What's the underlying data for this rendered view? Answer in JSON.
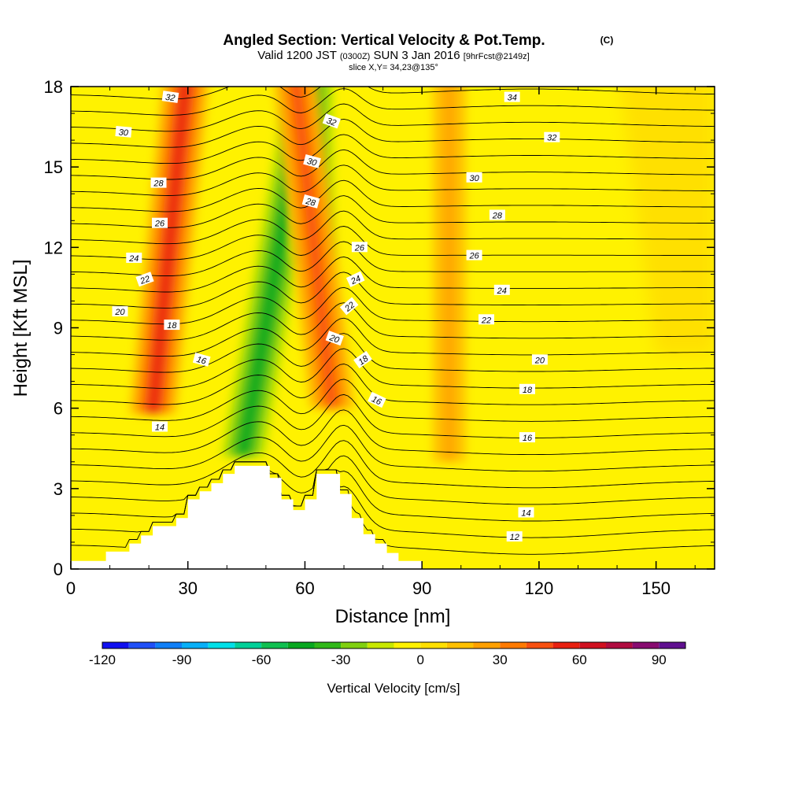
{
  "header": {
    "title": "Angled Section: Vertical Velocity & Pot.Temp.",
    "title_tag": "(C)",
    "valid_prefix": "Valid 1200 JST",
    "valid_zulu": "(0300Z)",
    "valid_date": "SUN 3 Jan 2016",
    "valid_fcst": "[9hrFcst@2149z]",
    "slice": "slice X,Y= 34,23@135°"
  },
  "chart_data": {
    "type": "heatmap",
    "subtype": "vertical cross-section with contour overlay",
    "xlabel": "Distance [nm]",
    "ylabel": "Height [Kft MSL]",
    "xlim": [
      0,
      165
    ],
    "ylim": [
      0,
      18
    ],
    "x_ticks": [
      0,
      30,
      60,
      90,
      120,
      150
    ],
    "y_ticks": [
      0,
      3,
      6,
      9,
      12,
      15,
      18
    ],
    "x_tick_labels": [
      "0",
      "30",
      "60",
      "90",
      "120",
      "150"
    ],
    "y_tick_labels": [
      "0",
      "3",
      "6",
      "9",
      "12",
      "15",
      "18"
    ],
    "fill_field": "Vertical Velocity",
    "fill_units": "cm/s",
    "contour_field": "Potential Temperature (C)",
    "contour_interval": 1,
    "contour_label_values": [
      12,
      14,
      16,
      18,
      20,
      22,
      24,
      26,
      28,
      30,
      32,
      34
    ],
    "contour_labels": [
      {
        "text": "32",
        "x": 25.5,
        "y": 17.6,
        "angle": 8
      },
      {
        "text": "30",
        "x": 13.5,
        "y": 16.3,
        "angle": 5
      },
      {
        "text": "28",
        "x": 22.5,
        "y": 14.4,
        "angle": 0
      },
      {
        "text": "26",
        "x": 22.8,
        "y": 12.9,
        "angle": 0
      },
      {
        "text": "24",
        "x": 16.2,
        "y": 11.6,
        "angle": 0
      },
      {
        "text": "22",
        "x": 19.0,
        "y": 10.8,
        "angle": -20
      },
      {
        "text": "20",
        "x": 12.6,
        "y": 9.6,
        "angle": 0
      },
      {
        "text": "18",
        "x": 25.9,
        "y": 9.1,
        "angle": 0
      },
      {
        "text": "16",
        "x": 33.5,
        "y": 7.8,
        "angle": 15
      },
      {
        "text": "14",
        "x": 22.8,
        "y": 5.3,
        "angle": 0
      },
      {
        "text": "32",
        "x": 66.8,
        "y": 16.7,
        "angle": 20
      },
      {
        "text": "30",
        "x": 61.8,
        "y": 15.2,
        "angle": 15
      },
      {
        "text": "28",
        "x": 61.5,
        "y": 13.7,
        "angle": 15
      },
      {
        "text": "26",
        "x": 74.0,
        "y": 12.0,
        "angle": 0
      },
      {
        "text": "24",
        "x": 73.0,
        "y": 10.8,
        "angle": -25
      },
      {
        "text": "22",
        "x": 71.4,
        "y": 9.8,
        "angle": -40
      },
      {
        "text": "20",
        "x": 67.6,
        "y": 8.6,
        "angle": 20
      },
      {
        "text": "18",
        "x": 74.9,
        "y": 7.8,
        "angle": -35
      },
      {
        "text": "16",
        "x": 78.4,
        "y": 6.3,
        "angle": 25
      },
      {
        "text": "34",
        "x": 113.1,
        "y": 17.6,
        "angle": 0
      },
      {
        "text": "32",
        "x": 123.3,
        "y": 16.1,
        "angle": 0
      },
      {
        "text": "30",
        "x": 103.4,
        "y": 14.6,
        "angle": 0
      },
      {
        "text": "28",
        "x": 109.3,
        "y": 13.2,
        "angle": 0
      },
      {
        "text": "26",
        "x": 103.4,
        "y": 11.7,
        "angle": 0
      },
      {
        "text": "24",
        "x": 110.5,
        "y": 10.4,
        "angle": 0
      },
      {
        "text": "22",
        "x": 106.5,
        "y": 9.3,
        "angle": 0
      },
      {
        "text": "20",
        "x": 120.2,
        "y": 7.8,
        "angle": 0
      },
      {
        "text": "18",
        "x": 117.0,
        "y": 6.7,
        "angle": 0
      },
      {
        "text": "16",
        "x": 117.0,
        "y": 4.9,
        "angle": 0
      },
      {
        "text": "14",
        "x": 116.7,
        "y": 2.1,
        "angle": 0
      },
      {
        "text": "12",
        "x": 113.7,
        "y": 1.2,
        "angle": 0
      }
    ],
    "colorbar": {
      "label": "Vertical Velocity [cm/s]",
      "min": -120,
      "max": 100,
      "step": 10,
      "tick_values": [
        -120,
        -90,
        -60,
        -30,
        0,
        30,
        60,
        90
      ],
      "tick_labels": [
        "-120",
        "-90",
        "-60",
        "-30",
        "0",
        "30",
        "60",
        "90"
      ],
      "colors": [
        "#1010f0",
        "#2050f8",
        "#1080f8",
        "#08b0f8",
        "#00e0e8",
        "#00d098",
        "#10c050",
        "#08a820",
        "#30b818",
        "#80d010",
        "#c8e800",
        "#fff200",
        "#ffe000",
        "#ffc000",
        "#ffa000",
        "#ff7a00",
        "#f85010",
        "#e82010",
        "#d01020",
        "#b00c40",
        "#880c70",
        "#601090"
      ]
    },
    "terrain_profile": [
      [
        0,
        0.3
      ],
      [
        9,
        0.3
      ],
      [
        9,
        0.65
      ],
      [
        15,
        0.65
      ],
      [
        15,
        0.95
      ],
      [
        18,
        0.95
      ],
      [
        18,
        1.25
      ],
      [
        21,
        1.25
      ],
      [
        21,
        1.6
      ],
      [
        27,
        1.6
      ],
      [
        27,
        1.9
      ],
      [
        30,
        1.9
      ],
      [
        30,
        2.6
      ],
      [
        33,
        2.6
      ],
      [
        33,
        2.9
      ],
      [
        36,
        2.9
      ],
      [
        36,
        3.2
      ],
      [
        39,
        3.2
      ],
      [
        39,
        3.55
      ],
      [
        42,
        3.55
      ],
      [
        42,
        3.85
      ],
      [
        48,
        3.85
      ],
      [
        48,
        3.85
      ],
      [
        51,
        3.85
      ],
      [
        51,
        3.4
      ],
      [
        54,
        3.4
      ],
      [
        54,
        2.6
      ],
      [
        57,
        2.6
      ],
      [
        57,
        2.2
      ],
      [
        60,
        2.2
      ],
      [
        60,
        2.6
      ],
      [
        63,
        2.6
      ],
      [
        63,
        3.55
      ],
      [
        69,
        3.55
      ],
      [
        69,
        2.8
      ],
      [
        72,
        2.8
      ],
      [
        72,
        1.9
      ],
      [
        75,
        1.9
      ],
      [
        75,
        1.3
      ],
      [
        78,
        1.3
      ],
      [
        78,
        0.95
      ],
      [
        81,
        0.95
      ],
      [
        81,
        0.6
      ],
      [
        84,
        0.6
      ],
      [
        84,
        0.3
      ],
      [
        90,
        0.3
      ],
      [
        90,
        0
      ]
    ],
    "velocity_features": [
      {
        "sign": "down",
        "x_center_at_top": 62,
        "x_center_at_bottom": 44,
        "y_bottom": 4.2,
        "peak_cm_s": -40
      },
      {
        "sign": "down",
        "x_center_at_top": 61.5,
        "x_center_at_bottom": 62,
        "y_bottom": 11.5,
        "peak_cm_s": -45
      },
      {
        "sign": "up",
        "x_center_at_top": 30,
        "x_center_at_bottom": 21,
        "y_bottom": 5.8,
        "peak_cm_s": 50
      },
      {
        "sign": "up",
        "x_center_at_top": 57,
        "x_center_at_bottom": 67,
        "y_bottom": 6.0,
        "peak_cm_s": 40
      },
      {
        "sign": "up",
        "x_center_at_top": 97,
        "x_center_at_bottom": 97,
        "y_bottom": 4.0,
        "peak_cm_s": 20
      }
    ]
  }
}
